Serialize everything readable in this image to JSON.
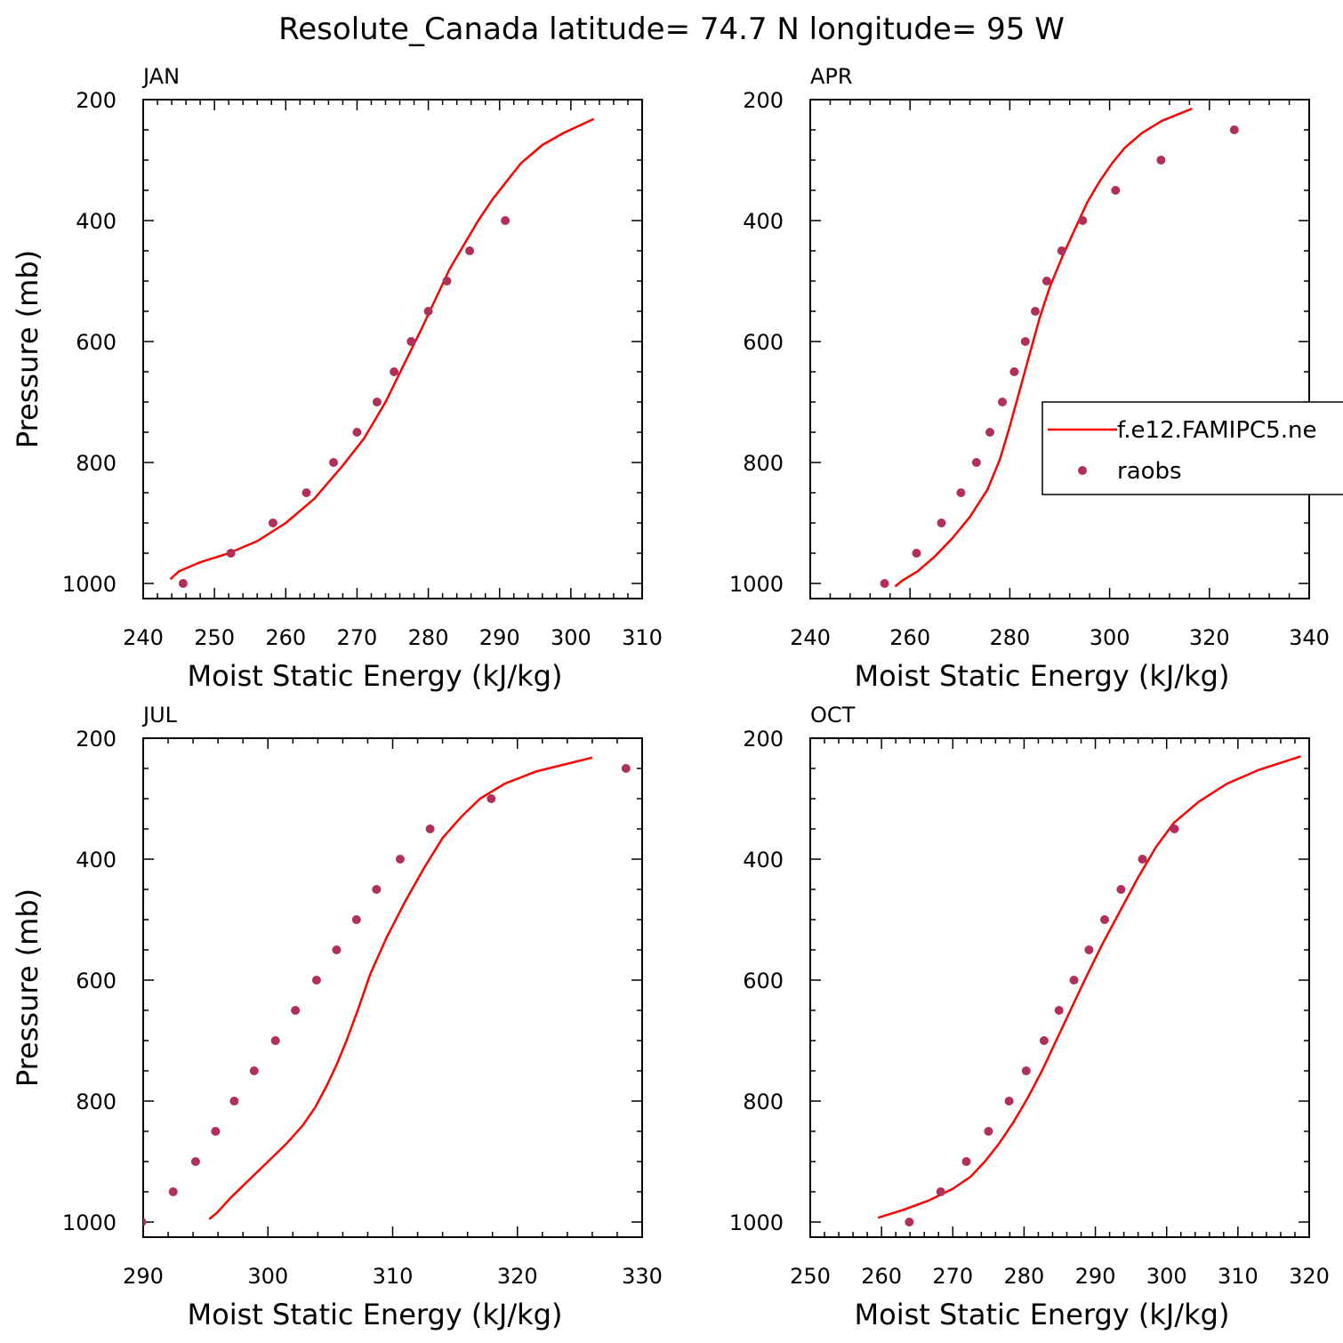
{
  "title": "Resolute_Canada  latitude= 74.7 N longitude= 95 W",
  "colors": {
    "model": "#ff0000",
    "obs": "#b0305a",
    "axis": "#000000"
  },
  "legend": {
    "model_label": "f.e12.FAMIPC5.ne",
    "obs_label": "raobs"
  },
  "chart_data": [
    {
      "type": "line",
      "panel": "JAN",
      "xlabel": "Moist Static Energy (kJ/kg)",
      "ylabel": "Pressure (mb)",
      "xlim": [
        240,
        310
      ],
      "xticks": [
        240,
        250,
        260,
        270,
        280,
        290,
        300,
        310
      ],
      "ylim": [
        1025,
        200
      ],
      "yticks": [
        200,
        400,
        600,
        800,
        1000
      ],
      "series": [
        {
          "name": "f.e12.FAMIPC5.ne",
          "kind": "line",
          "x": [
            243.8,
            245,
            248,
            252,
            256,
            260,
            264,
            268,
            271,
            274,
            276.5,
            279,
            281,
            283,
            285,
            287,
            289,
            291,
            293,
            296,
            299,
            303.2
          ],
          "y": [
            993,
            980,
            965,
            950,
            930,
            900,
            860,
            805,
            760,
            700,
            640,
            580,
            530,
            480,
            440,
            400,
            365,
            335,
            305,
            275,
            255,
            232
          ]
        },
        {
          "name": "raobs",
          "kind": "scatter",
          "x": [
            245.6,
            252.3,
            258.2,
            262.9,
            266.7,
            270,
            272.8,
            275.2,
            277.6,
            280,
            282.6,
            285.8,
            290.8
          ],
          "y": [
            1000,
            950,
            900,
            850,
            800,
            750,
            700,
            650,
            600,
            550,
            500,
            450,
            400
          ]
        }
      ]
    },
    {
      "type": "line",
      "panel": "APR",
      "xlabel": "Moist Static Energy (kJ/kg)",
      "ylabel": "",
      "xlim": [
        240,
        340
      ],
      "xticks": [
        240,
        260,
        280,
        300,
        320,
        340
      ],
      "ylim": [
        1025,
        200
      ],
      "yticks": [
        200,
        400,
        600,
        800,
        1000
      ],
      "series": [
        {
          "name": "f.e12.FAMIPC5.ne",
          "kind": "line",
          "x": [
            257,
            258.5,
            261.5,
            265,
            268.5,
            272,
            275.5,
            278,
            280,
            282,
            284,
            286,
            288,
            290.5,
            293,
            295.5,
            298,
            300.5,
            303,
            306.5,
            310.5,
            316.5
          ],
          "y": [
            1005,
            995,
            980,
            955,
            925,
            890,
            845,
            795,
            740,
            680,
            620,
            560,
            510,
            460,
            415,
            370,
            335,
            305,
            280,
            255,
            235,
            215
          ]
        },
        {
          "name": "raobs",
          "kind": "scatter",
          "x": [
            254.9,
            261.3,
            266.3,
            270.2,
            273.3,
            276,
            278.5,
            280.9,
            283.1,
            285.1,
            287.4,
            290.4,
            294.6,
            301.2,
            310.3,
            325
          ],
          "y": [
            1000,
            950,
            900,
            850,
            800,
            750,
            700,
            650,
            600,
            550,
            500,
            450,
            400,
            350,
            300,
            250
          ]
        }
      ]
    },
    {
      "type": "line",
      "panel": "JUL",
      "xlabel": "Moist Static Energy (kJ/kg)",
      "ylabel": "Pressure (mb)",
      "xlim": [
        290,
        330
      ],
      "xticks": [
        290,
        300,
        310,
        320,
        330
      ],
      "ylim": [
        1025,
        200
      ],
      "yticks": [
        200,
        400,
        600,
        800,
        1000
      ],
      "series": [
        {
          "name": "f.e12.FAMIPC5.ne",
          "kind": "line",
          "x": [
            295.3,
            295.9,
            297,
            298.5,
            300,
            301.5,
            302.8,
            303.8,
            304.7,
            305.5,
            306.3,
            307.2,
            308.2,
            309.5,
            311,
            312.5,
            314,
            315.5,
            317,
            319,
            321.5,
            326
          ],
          "y": [
            995,
            985,
            960,
            930,
            900,
            870,
            840,
            810,
            775,
            740,
            700,
            650,
            590,
            530,
            470,
            415,
            365,
            330,
            300,
            275,
            255,
            232
          ]
        },
        {
          "name": "raobs",
          "kind": "scatter",
          "x": [
            289.9,
            292.4,
            294.2,
            295.8,
            297.3,
            298.9,
            300.6,
            302.2,
            303.9,
            305.5,
            307.1,
            308.7,
            310.6,
            313,
            317.9,
            328.7
          ],
          "y": [
            1000,
            950,
            900,
            850,
            800,
            750,
            700,
            650,
            600,
            550,
            500,
            450,
            400,
            350,
            300,
            250
          ]
        }
      ]
    },
    {
      "type": "line",
      "panel": "OCT",
      "xlabel": "Moist Static Energy (kJ/kg)",
      "ylabel": "",
      "xlim": [
        250,
        320
      ],
      "xticks": [
        250,
        260,
        270,
        280,
        290,
        300,
        310,
        320
      ],
      "ylim": [
        1025,
        200
      ],
      "yticks": [
        200,
        400,
        600,
        800,
        1000
      ],
      "series": [
        {
          "name": "f.e12.FAMIPC5.ne",
          "kind": "line",
          "x": [
            259.5,
            263,
            266.5,
            270,
            272.5,
            274.5,
            276.5,
            278.5,
            280.5,
            282.5,
            284.5,
            286.5,
            288.5,
            291,
            293.5,
            296,
            298.5,
            301,
            304.5,
            308.5,
            313,
            318.8
          ],
          "y": [
            993,
            980,
            965,
            945,
            925,
            900,
            870,
            835,
            795,
            750,
            700,
            650,
            600,
            540,
            485,
            430,
            380,
            340,
            305,
            275,
            252,
            230
          ]
        },
        {
          "name": "raobs",
          "kind": "scatter",
          "x": [
            263.9,
            268.3,
            271.9,
            275,
            277.9,
            280.3,
            282.8,
            284.9,
            287,
            289.1,
            291.3,
            293.6,
            296.6,
            301.1
          ],
          "y": [
            1000,
            950,
            900,
            850,
            800,
            750,
            700,
            650,
            600,
            550,
            500,
            450,
            400,
            350
          ]
        }
      ]
    }
  ]
}
